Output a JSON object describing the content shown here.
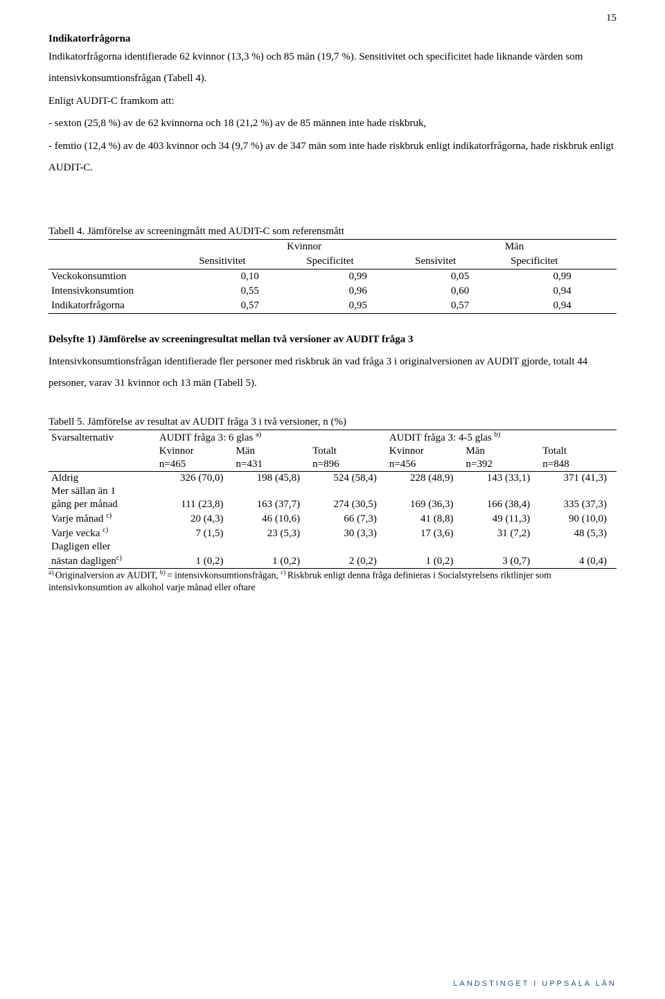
{
  "page_number": "15",
  "heading_indikator": "Indikatorfrågorna",
  "para1": "Indikatorfrågorna identifierade 62 kvinnor (13,3 %) och 85 män (19,7 %). Sensitivitet och specificitet hade liknande värden som intensivkonsumtionsfrågan (Tabell 4).",
  "para2_lead": "Enligt AUDIT-C framkom att:",
  "para2_item1": "- sexton (25,8 %) av de 62 kvinnorna och 18 (21,2 %) av de 85 männen inte hade riskbruk,",
  "para2_item2": "- femtio (12,4 %) av de 403 kvinnor och 34 (9,7 %) av de 347 män som inte hade riskbruk enligt indikatorfrågorna, hade riskbruk enligt AUDIT-C.",
  "table4": {
    "caption": "Tabell 4. Jämförelse av screeningmått med AUDIT-C som referensmått",
    "group_headers": [
      "Kvinnor",
      "Män"
    ],
    "sub_headers": [
      "Sensitivitet",
      "Specificitet",
      "Sensivitet",
      "Specificitet"
    ],
    "rows": [
      {
        "label": "Veckokonsumtion",
        "v": [
          "0,10",
          "0,99",
          "0,05",
          "0,99"
        ]
      },
      {
        "label": "Intensivkonsumtion",
        "v": [
          "0,55",
          "0,96",
          "0,60",
          "0,94"
        ]
      },
      {
        "label": "Indikatorfrågorna",
        "v": [
          "0,57",
          "0,95",
          "0,57",
          "0,94"
        ]
      }
    ]
  },
  "delsyfte_heading": "Delsyfte 1) Jämförelse av screeningresultat mellan två versioner av AUDIT fråga 3",
  "delsyfte_para": "Intensivkonsumtionsfrågan identifierade fler personer med riskbruk än vad fråga 3 i originalversionen av AUDIT gjorde, totalt 44 personer, varav 31 kvinnor och 13 män (Tabell 5).",
  "table5": {
    "caption": "Tabell 5. Jämförelse av resultat av AUDIT fråga 3 i två versioner, n (%)",
    "header_lab": "Svarsalternativ",
    "header_g1_pre": "AUDIT fråga 3: 6 glas ",
    "header_g1_sup": "a)",
    "header_g2_pre": "AUDIT fråga 3: 4-5 glas ",
    "header_g2_sup": "b)",
    "sub_headers": [
      "Kvinnor",
      "Män",
      "Totalt",
      "Kvinnor",
      "Män",
      "Totalt"
    ],
    "n_headers": [
      "n=465",
      "n=431",
      "n=896",
      "n=456",
      "n=392",
      "n=848"
    ],
    "rows": [
      {
        "label_lines": [
          "Aldrig"
        ],
        "sup": "",
        "v": [
          "326 (70,0)",
          "198 (45,8)",
          "524 (58,4)",
          "228 (48,9)",
          "143 (33,1)",
          "371 (41,3)"
        ]
      },
      {
        "label_lines": [
          "Mer sällan än 1",
          "gång per månad"
        ],
        "sup": "",
        "v": [
          "111 (23,8)",
          "163 (37,7)",
          "274 (30,5)",
          "169 (36,3)",
          "166 (38,4)",
          "335 (37,3)"
        ]
      },
      {
        "label_lines": [
          "Varje månad "
        ],
        "sup": "c)",
        "v": [
          "20 (4,3)",
          "46 (10,6)",
          "66 (7,3)",
          "41 (8,8)",
          "49 (11,3)",
          "90 (10,0)"
        ]
      },
      {
        "label_lines": [
          "Varje vecka "
        ],
        "sup": "c)",
        "v": [
          "7 (1,5)",
          "23 (5,3)",
          "30 (3,3)",
          "17 (3,6)",
          "31 (7,2)",
          "48 (5,3)"
        ]
      },
      {
        "label_lines": [
          "Dagligen eller",
          "nästan dagligen"
        ],
        "sup": "c)",
        "v": [
          "1 (0,2)",
          "1 (0,2)",
          "2 (0,2)",
          "1 (0,2)",
          "3 (0,7)",
          "4 (0,4)"
        ]
      }
    ],
    "footnote_a_sup": "a) ",
    "footnote_a": "Originalversion av AUDIT, ",
    "footnote_b_sup": "b) ",
    "footnote_b": "= intensivkonsumtionsfrågan, ",
    "footnote_c_sup": "c) ",
    "footnote_c": "Riskbruk enligt denna fråga definieras i Socialstyrelsens riktlinjer som intensivkonsumtion av alkohol varje månad eller oftare"
  },
  "footer_stamp": "LANDSTINGET I UPPSALA LÄN"
}
